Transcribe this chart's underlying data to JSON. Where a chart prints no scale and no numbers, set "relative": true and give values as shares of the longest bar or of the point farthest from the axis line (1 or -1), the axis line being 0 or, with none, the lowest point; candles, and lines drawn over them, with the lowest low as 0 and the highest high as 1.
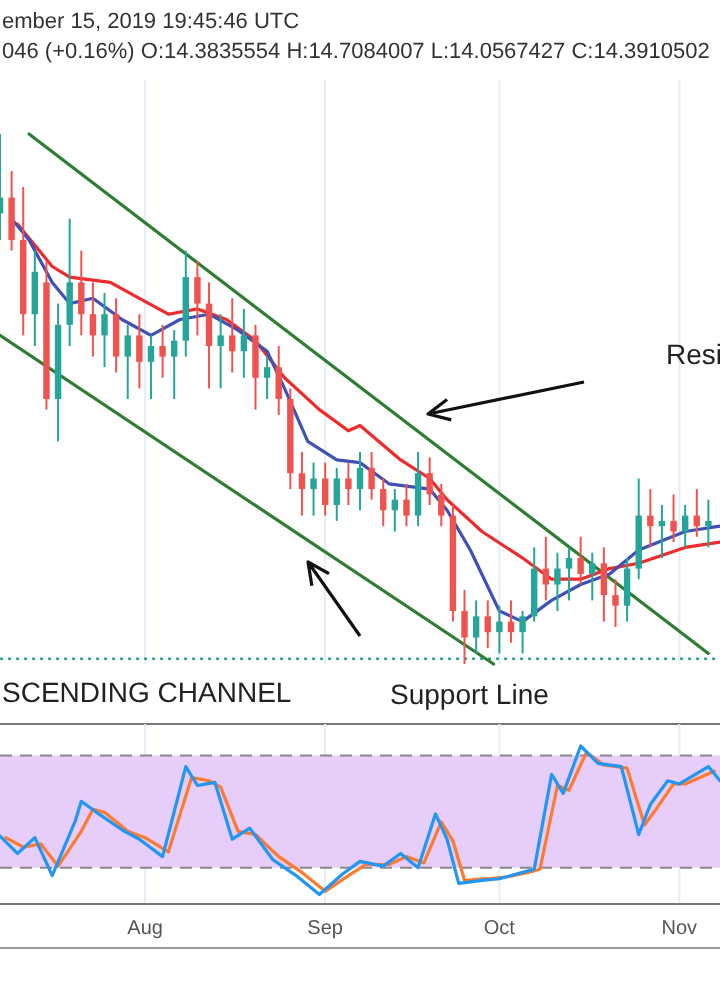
{
  "chart_data": [
    {
      "type": "candlestick",
      "relative": true,
      "grid": "x",
      "tick_labels": false,
      "xlim": [
        "2019-07-07",
        "2019-11-08"
      ],
      "xticks": [
        {
          "value": "2019-08-01",
          "label": null
        },
        {
          "value": "2019-09-01",
          "label": null
        },
        {
          "value": "2019-10-01",
          "label": null
        },
        {
          "value": "2019-11-01",
          "label": null
        }
      ],
      "annotations": [
        "ember 15, 2019 19:45:46 UTC",
        "046 (+0.16%) O:14.3835554 H:14.7084007 L:14.0567427 C:14.3910502",
        "Resi",
        "SCENDING CHANNEL",
        "Support Line"
      ],
      "x": [
        "2019-07-07",
        "2019-07-09",
        "2019-07-11",
        "2019-07-13",
        "2019-07-15",
        "2019-07-17",
        "2019-07-19",
        "2019-07-21",
        "2019-07-23",
        "2019-07-25",
        "2019-07-27",
        "2019-07-29",
        "2019-07-31",
        "2019-08-02",
        "2019-08-04",
        "2019-08-06",
        "2019-08-08",
        "2019-08-10",
        "2019-08-12",
        "2019-08-14",
        "2019-08-16",
        "2019-08-18",
        "2019-08-20",
        "2019-08-22",
        "2019-08-24",
        "2019-08-26",
        "2019-08-28",
        "2019-08-30",
        "2019-09-01",
        "2019-09-03",
        "2019-09-05",
        "2019-09-07",
        "2019-09-09",
        "2019-09-11",
        "2019-09-13",
        "2019-09-15",
        "2019-09-17",
        "2019-09-19",
        "2019-09-21",
        "2019-09-23",
        "2019-09-25",
        "2019-09-27",
        "2019-09-29",
        "2019-10-01",
        "2019-10-03",
        "2019-10-05",
        "2019-10-07",
        "2019-10-09",
        "2019-10-11",
        "2019-10-13",
        "2019-10-15",
        "2019-10-17",
        "2019-10-19",
        "2019-10-21",
        "2019-10-23",
        "2019-10-25",
        "2019-10-27",
        "2019-10-29",
        "2019-10-31",
        "2019-11-02",
        "2019-11-04",
        "2019-11-06"
      ],
      "ohlc": [
        [
          0.85,
          1.0,
          0.8,
          0.88
        ],
        [
          0.88,
          0.93,
          0.78,
          0.8
        ],
        [
          0.8,
          0.9,
          0.62,
          0.66
        ],
        [
          0.66,
          0.78,
          0.6,
          0.74
        ],
        [
          0.72,
          0.76,
          0.48,
          0.5
        ],
        [
          0.5,
          0.68,
          0.42,
          0.64
        ],
        [
          0.64,
          0.84,
          0.6,
          0.72
        ],
        [
          0.72,
          0.78,
          0.62,
          0.66
        ],
        [
          0.66,
          0.72,
          0.58,
          0.62
        ],
        [
          0.62,
          0.7,
          0.56,
          0.66
        ],
        [
          0.66,
          0.69,
          0.55,
          0.58
        ],
        [
          0.58,
          0.64,
          0.5,
          0.62
        ],
        [
          0.62,
          0.66,
          0.52,
          0.57
        ],
        [
          0.57,
          0.62,
          0.5,
          0.6
        ],
        [
          0.6,
          0.64,
          0.54,
          0.58
        ],
        [
          0.58,
          0.63,
          0.5,
          0.61
        ],
        [
          0.61,
          0.78,
          0.58,
          0.73
        ],
        [
          0.73,
          0.76,
          0.62,
          0.68
        ],
        [
          0.68,
          0.72,
          0.52,
          0.6
        ],
        [
          0.6,
          0.66,
          0.52,
          0.62
        ],
        [
          0.62,
          0.69,
          0.55,
          0.59
        ],
        [
          0.59,
          0.67,
          0.54,
          0.62
        ],
        [
          0.62,
          0.64,
          0.48,
          0.54
        ],
        [
          0.54,
          0.58,
          0.5,
          0.56
        ],
        [
          0.56,
          0.6,
          0.47,
          0.5
        ],
        [
          0.5,
          0.52,
          0.33,
          0.36
        ],
        [
          0.36,
          0.4,
          0.28,
          0.33
        ],
        [
          0.33,
          0.38,
          0.28,
          0.35
        ],
        [
          0.35,
          0.38,
          0.28,
          0.3
        ],
        [
          0.3,
          0.37,
          0.27,
          0.35
        ],
        [
          0.35,
          0.38,
          0.3,
          0.33
        ],
        [
          0.33,
          0.4,
          0.29,
          0.37
        ],
        [
          0.37,
          0.4,
          0.31,
          0.33
        ],
        [
          0.33,
          0.35,
          0.26,
          0.29
        ],
        [
          0.29,
          0.33,
          0.25,
          0.31
        ],
        [
          0.31,
          0.34,
          0.26,
          0.28
        ],
        [
          0.28,
          0.4,
          0.26,
          0.36
        ],
        [
          0.36,
          0.39,
          0.3,
          0.32
        ],
        [
          0.32,
          0.34,
          0.26,
          0.28
        ],
        [
          0.28,
          0.3,
          0.08,
          0.1
        ],
        [
          0.1,
          0.14,
          0.0,
          0.05
        ],
        [
          0.05,
          0.12,
          0.02,
          0.09
        ],
        [
          0.09,
          0.12,
          0.03,
          0.06
        ],
        [
          0.06,
          0.11,
          0.02,
          0.08
        ],
        [
          0.08,
          0.12,
          0.04,
          0.06
        ],
        [
          0.06,
          0.1,
          0.02,
          0.09
        ],
        [
          0.09,
          0.22,
          0.08,
          0.18
        ],
        [
          0.18,
          0.24,
          0.12,
          0.15
        ],
        [
          0.15,
          0.21,
          0.1,
          0.18
        ],
        [
          0.18,
          0.22,
          0.12,
          0.2
        ],
        [
          0.2,
          0.24,
          0.15,
          0.17
        ],
        [
          0.17,
          0.21,
          0.12,
          0.19
        ],
        [
          0.19,
          0.22,
          0.08,
          0.13
        ],
        [
          0.13,
          0.16,
          0.07,
          0.11
        ],
        [
          0.11,
          0.2,
          0.08,
          0.18
        ],
        [
          0.18,
          0.35,
          0.16,
          0.28
        ],
        [
          0.28,
          0.33,
          0.22,
          0.26
        ],
        [
          0.26,
          0.3,
          0.2,
          0.27
        ],
        [
          0.27,
          0.32,
          0.23,
          0.25
        ],
        [
          0.25,
          0.3,
          0.22,
          0.28
        ],
        [
          0.28,
          0.33,
          0.24,
          0.26
        ],
        [
          0.26,
          0.31,
          0.22,
          0.27
        ]
      ],
      "colors": [
        "#26a69a",
        "#ef5350",
        "#ef5350",
        "#26a69a",
        "#ef5350",
        "#26a69a",
        "#26a69a",
        "#ef5350",
        "#ef5350",
        "#26a69a",
        "#ef5350",
        "#26a69a",
        "#ef5350",
        "#26a69a",
        "#ef5350",
        "#26a69a",
        "#26a69a",
        "#ef5350",
        "#ef5350",
        "#26a69a",
        "#ef5350",
        "#26a69a",
        "#ef5350",
        "#26a69a",
        "#ef5350",
        "#ef5350",
        "#ef5350",
        "#26a69a",
        "#ef5350",
        "#26a69a",
        "#ef5350",
        "#26a69a",
        "#ef5350",
        "#ef5350",
        "#26a69a",
        "#ef5350",
        "#26a69a",
        "#ef5350",
        "#ef5350",
        "#ef5350",
        "#ef5350",
        "#26a69a",
        "#ef5350",
        "#26a69a",
        "#ef5350",
        "#26a69a",
        "#26a69a",
        "#ef5350",
        "#26a69a",
        "#26a69a",
        "#ef5350",
        "#26a69a",
        "#ef5350",
        "#ef5350",
        "#26a69a",
        "#26a69a",
        "#ef5350",
        "#26a69a",
        "#ef5350",
        "#26a69a",
        "#ef5350",
        "#26a69a"
      ],
      "ref_lines": [
        {
          "axis": "y",
          "value": 0.01,
          "color": "#26a69a",
          "line_style": "dotted"
        }
      ],
      "series": [
        {
          "type": "line",
          "color": "#2e7d32",
          "x": [
            "2019-07-12",
            "2019-11-06"
          ],
          "values": [
            1.0,
            0.02
          ]
        },
        {
          "type": "line",
          "color": "#2e7d32",
          "x": [
            "2019-07-07",
            "2019-09-30"
          ],
          "values": [
            0.62,
            0.0
          ]
        },
        {
          "type": "line",
          "color": "#ee2a2a",
          "x": [
            "2019-07-10",
            "2019-07-16",
            "2019-07-19",
            "2019-07-26",
            "2019-07-31",
            "2019-08-05",
            "2019-08-10",
            "2019-08-15",
            "2019-08-20",
            "2019-08-25",
            "2019-08-31",
            "2019-09-05",
            "2019-09-07",
            "2019-09-14",
            "2019-09-19",
            "2019-09-22",
            "2019-09-28",
            "2019-10-05",
            "2019-10-10",
            "2019-10-15",
            "2019-10-20",
            "2019-10-25",
            "2019-11-02",
            "2019-11-08"
          ],
          "values": [
            0.83,
            0.75,
            0.73,
            0.72,
            0.69,
            0.66,
            0.67,
            0.65,
            0.61,
            0.54,
            0.48,
            0.44,
            0.45,
            0.385,
            0.35,
            0.31,
            0.25,
            0.2,
            0.16,
            0.16,
            0.18,
            0.19,
            0.22,
            0.23
          ]
        },
        {
          "type": "line",
          "color": "#3f51b5",
          "x": [
            "2019-07-09",
            "2019-07-12",
            "2019-07-16",
            "2019-07-19",
            "2019-07-23",
            "2019-07-28",
            "2019-08-02",
            "2019-08-07",
            "2019-08-12",
            "2019-08-17",
            "2019-08-22",
            "2019-08-25",
            "2019-08-29",
            "2019-09-03",
            "2019-09-07",
            "2019-09-12",
            "2019-09-19",
            "2019-09-22",
            "2019-09-26",
            "2019-10-01",
            "2019-10-05",
            "2019-10-10",
            "2019-10-15",
            "2019-10-20",
            "2019-10-25",
            "2019-11-02",
            "2019-11-08"
          ],
          "values": [
            0.84,
            0.8,
            0.72,
            0.68,
            0.69,
            0.65,
            0.62,
            0.65,
            0.66,
            0.63,
            0.59,
            0.52,
            0.42,
            0.385,
            0.38,
            0.34,
            0.33,
            0.29,
            0.215,
            0.1,
            0.08,
            0.12,
            0.15,
            0.17,
            0.215,
            0.25,
            0.26
          ]
        }
      ]
    },
    {
      "type": "line",
      "relative": true,
      "grid": "x",
      "tick_labels": "x",
      "xlim": [
        "2019-07-07",
        "2019-11-08"
      ],
      "xticks": [
        {
          "value": "2019-08-01",
          "label": "Aug"
        },
        {
          "value": "2019-09-01",
          "label": "Sep"
        },
        {
          "value": "2019-10-01",
          "label": "Oct"
        },
        {
          "value": "2019-11-01",
          "label": "Nov"
        }
      ],
      "bands": [
        {
          "axis": "y",
          "from": 0.23,
          "to": 0.94,
          "color": "#e6cdfa"
        }
      ],
      "ref_lines": [
        {
          "axis": "y",
          "value": 0.23,
          "color": "#888888",
          "line_style": "dashed"
        },
        {
          "axis": "y",
          "value": 0.94,
          "color": "#888888",
          "line_style": "dashed"
        }
      ],
      "series": [
        {
          "color": "#ff7a2f",
          "x": [
            "2019-07-08",
            "2019-07-11",
            "2019-07-14",
            "2019-07-17",
            "2019-07-21",
            "2019-07-23",
            "2019-07-25",
            "2019-07-29",
            "2019-08-01",
            "2019-08-05",
            "2019-08-09",
            "2019-08-12",
            "2019-08-14",
            "2019-08-17",
            "2019-08-20",
            "2019-08-24",
            "2019-08-28",
            "2019-09-01",
            "2019-09-05",
            "2019-09-08",
            "2019-09-12",
            "2019-09-15",
            "2019-09-18",
            "2019-09-21",
            "2019-09-23",
            "2019-09-25",
            "2019-09-29",
            "2019-10-02",
            "2019-10-06",
            "2019-10-08",
            "2019-10-11",
            "2019-10-13",
            "2019-10-16",
            "2019-10-19",
            "2019-10-23",
            "2019-10-26",
            "2019-10-28",
            "2019-10-31",
            "2019-11-02",
            "2019-11-07"
          ],
          "values": [
            0.42,
            0.36,
            0.38,
            0.24,
            0.46,
            0.6,
            0.58,
            0.46,
            0.42,
            0.33,
            0.8,
            0.78,
            0.74,
            0.46,
            0.44,
            0.3,
            0.2,
            0.08,
            0.18,
            0.25,
            0.25,
            0.3,
            0.26,
            0.52,
            0.4,
            0.15,
            0.16,
            0.17,
            0.2,
            0.22,
            0.75,
            0.72,
            0.96,
            0.88,
            0.86,
            0.5,
            0.6,
            0.76,
            0.76,
            0.84
          ]
        },
        {
          "color": "#2196f3",
          "x": [
            "2019-07-07",
            "2019-07-10",
            "2019-07-13",
            "2019-07-16",
            "2019-07-20",
            "2019-07-21",
            "2019-07-24",
            "2019-07-28",
            "2019-07-31",
            "2019-08-04",
            "2019-08-08",
            "2019-08-10",
            "2019-08-13",
            "2019-08-16",
            "2019-08-19",
            "2019-08-23",
            "2019-08-27",
            "2019-08-31",
            "2019-09-04",
            "2019-09-07",
            "2019-09-11",
            "2019-09-14",
            "2019-09-17",
            "2019-09-20",
            "2019-09-22",
            "2019-09-24",
            "2019-09-28",
            "2019-10-01",
            "2019-10-05",
            "2019-10-07",
            "2019-10-10",
            "2019-10-12",
            "2019-10-15",
            "2019-10-18",
            "2019-10-22",
            "2019-10-25",
            "2019-10-27",
            "2019-10-30",
            "2019-11-01",
            "2019-11-06",
            "2019-11-08"
          ],
          "values": [
            0.43,
            0.32,
            0.42,
            0.18,
            0.53,
            0.65,
            0.57,
            0.47,
            0.41,
            0.3,
            0.87,
            0.75,
            0.77,
            0.41,
            0.48,
            0.28,
            0.18,
            0.06,
            0.19,
            0.27,
            0.24,
            0.32,
            0.23,
            0.57,
            0.41,
            0.13,
            0.15,
            0.16,
            0.2,
            0.22,
            0.82,
            0.7,
            1.0,
            0.89,
            0.87,
            0.44,
            0.63,
            0.78,
            0.76,
            0.87,
            0.78
          ]
        }
      ]
    }
  ]
}
